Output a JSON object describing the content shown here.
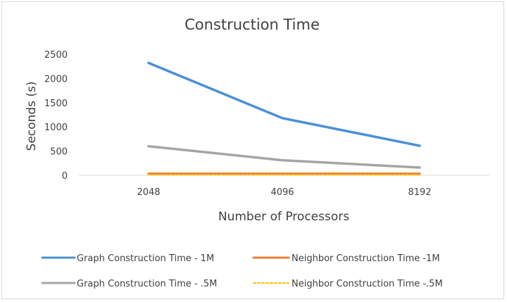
{
  "chart_data": {
    "type": "line",
    "title": "Construction Time",
    "xlabel": "Number of Processors",
    "ylabel": "Seconds (s)",
    "categories": [
      "2048",
      "4096",
      "8192"
    ],
    "ylim": [
      0,
      2500
    ],
    "yticks": [
      0,
      500,
      1000,
      1500,
      2000,
      2500
    ],
    "grid": false,
    "legend_position": "bottom",
    "series": [
      {
        "name": "Graph Construction Time - 1M",
        "values": [
          2320,
          1180,
          610
        ],
        "color": "#4a8fd6",
        "dash": "solid"
      },
      {
        "name": "Neighbor Construction Time -1M",
        "values": [
          30,
          30,
          30
        ],
        "color": "#ed7d31",
        "dash": "solid"
      },
      {
        "name": "Graph Construction Time - .5M",
        "values": [
          600,
          310,
          160
        ],
        "color": "#a5a5a5",
        "dash": "solid"
      },
      {
        "name": "Neighbor Construction Time -.5M",
        "values": [
          12,
          12,
          12
        ],
        "color": "#ffc000",
        "dash": "dotted"
      }
    ]
  }
}
